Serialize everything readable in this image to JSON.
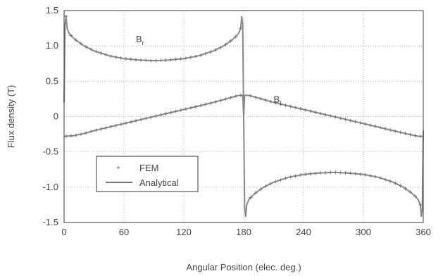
{
  "chart_data": {
    "type": "line",
    "title": "",
    "xlabel": "Angular Position (elec. deg.)",
    "ylabel": "Flux density (T)",
    "xlim": [
      0,
      360
    ],
    "ylim": [
      -1.5,
      1.5
    ],
    "x_ticks": [
      0,
      60,
      120,
      180,
      240,
      300,
      360
    ],
    "y_ticks": [
      -1.5,
      -1.0,
      -0.5,
      0,
      0.5,
      1.0,
      1.5
    ],
    "x_tick_labels": [
      "0",
      "60",
      "120",
      "180",
      "240",
      "300",
      "360"
    ],
    "y_tick_labels": [
      "-1.5",
      "-1.0",
      "-0.5",
      "0",
      "0.5",
      "1.0",
      "1.5"
    ],
    "grid": true,
    "legend": {
      "placement": "lower-left",
      "entries": [
        {
          "label": "FEM",
          "style": "marker"
        },
        {
          "label": "Analytical",
          "style": "line"
        }
      ]
    },
    "annotations": [
      {
        "text": "B",
        "sub": "r",
        "x": 72,
        "y": 1.05
      },
      {
        "text": "B",
        "sub": "t",
        "x": 210,
        "y": 0.2
      }
    ],
    "series": [
      {
        "name": "Analytical",
        "curve": "Br",
        "x": [
          0,
          1,
          2,
          3,
          5,
          8,
          12,
          20,
          30,
          45,
          60,
          75,
          90,
          105,
          120,
          135,
          150,
          160,
          168,
          172,
          175,
          177,
          178,
          179,
          180,
          181,
          182,
          183,
          185,
          188,
          192,
          200,
          210,
          225,
          240,
          255,
          270,
          285,
          300,
          315,
          330,
          340,
          348,
          352,
          355,
          357,
          358,
          359,
          360
        ],
        "y": [
          0.2,
          1.3,
          1.42,
          1.25,
          1.18,
          1.13,
          1.08,
          1.0,
          0.93,
          0.86,
          0.82,
          0.8,
          0.79,
          0.8,
          0.82,
          0.86,
          0.93,
          1.0,
          1.08,
          1.13,
          1.18,
          1.25,
          1.42,
          1.3,
          0.0,
          -1.3,
          -1.42,
          -1.25,
          -1.18,
          -1.13,
          -1.08,
          -1.0,
          -0.93,
          -0.86,
          -0.82,
          -0.8,
          -0.79,
          -0.8,
          -0.82,
          -0.86,
          -0.93,
          -1.0,
          -1.08,
          -1.13,
          -1.18,
          -1.25,
          -1.42,
          -1.3,
          -0.2
        ]
      },
      {
        "name": "Analytical",
        "curve": "Bt",
        "x": [
          0,
          10,
          20,
          30,
          45,
          60,
          75,
          90,
          105,
          120,
          135,
          150,
          165,
          175,
          179,
          180,
          181,
          185,
          195,
          210,
          225,
          240,
          255,
          270,
          285,
          300,
          315,
          330,
          345,
          355,
          360
        ],
        "y": [
          -0.28,
          -0.27,
          -0.24,
          -0.2,
          -0.15,
          -0.1,
          -0.05,
          0.0,
          0.05,
          0.1,
          0.15,
          0.2,
          0.26,
          0.3,
          0.3,
          0.0,
          0.3,
          0.3,
          0.26,
          0.2,
          0.15,
          0.1,
          0.05,
          0.0,
          -0.05,
          -0.1,
          -0.15,
          -0.2,
          -0.25,
          -0.28,
          -0.28
        ]
      }
    ]
  }
}
